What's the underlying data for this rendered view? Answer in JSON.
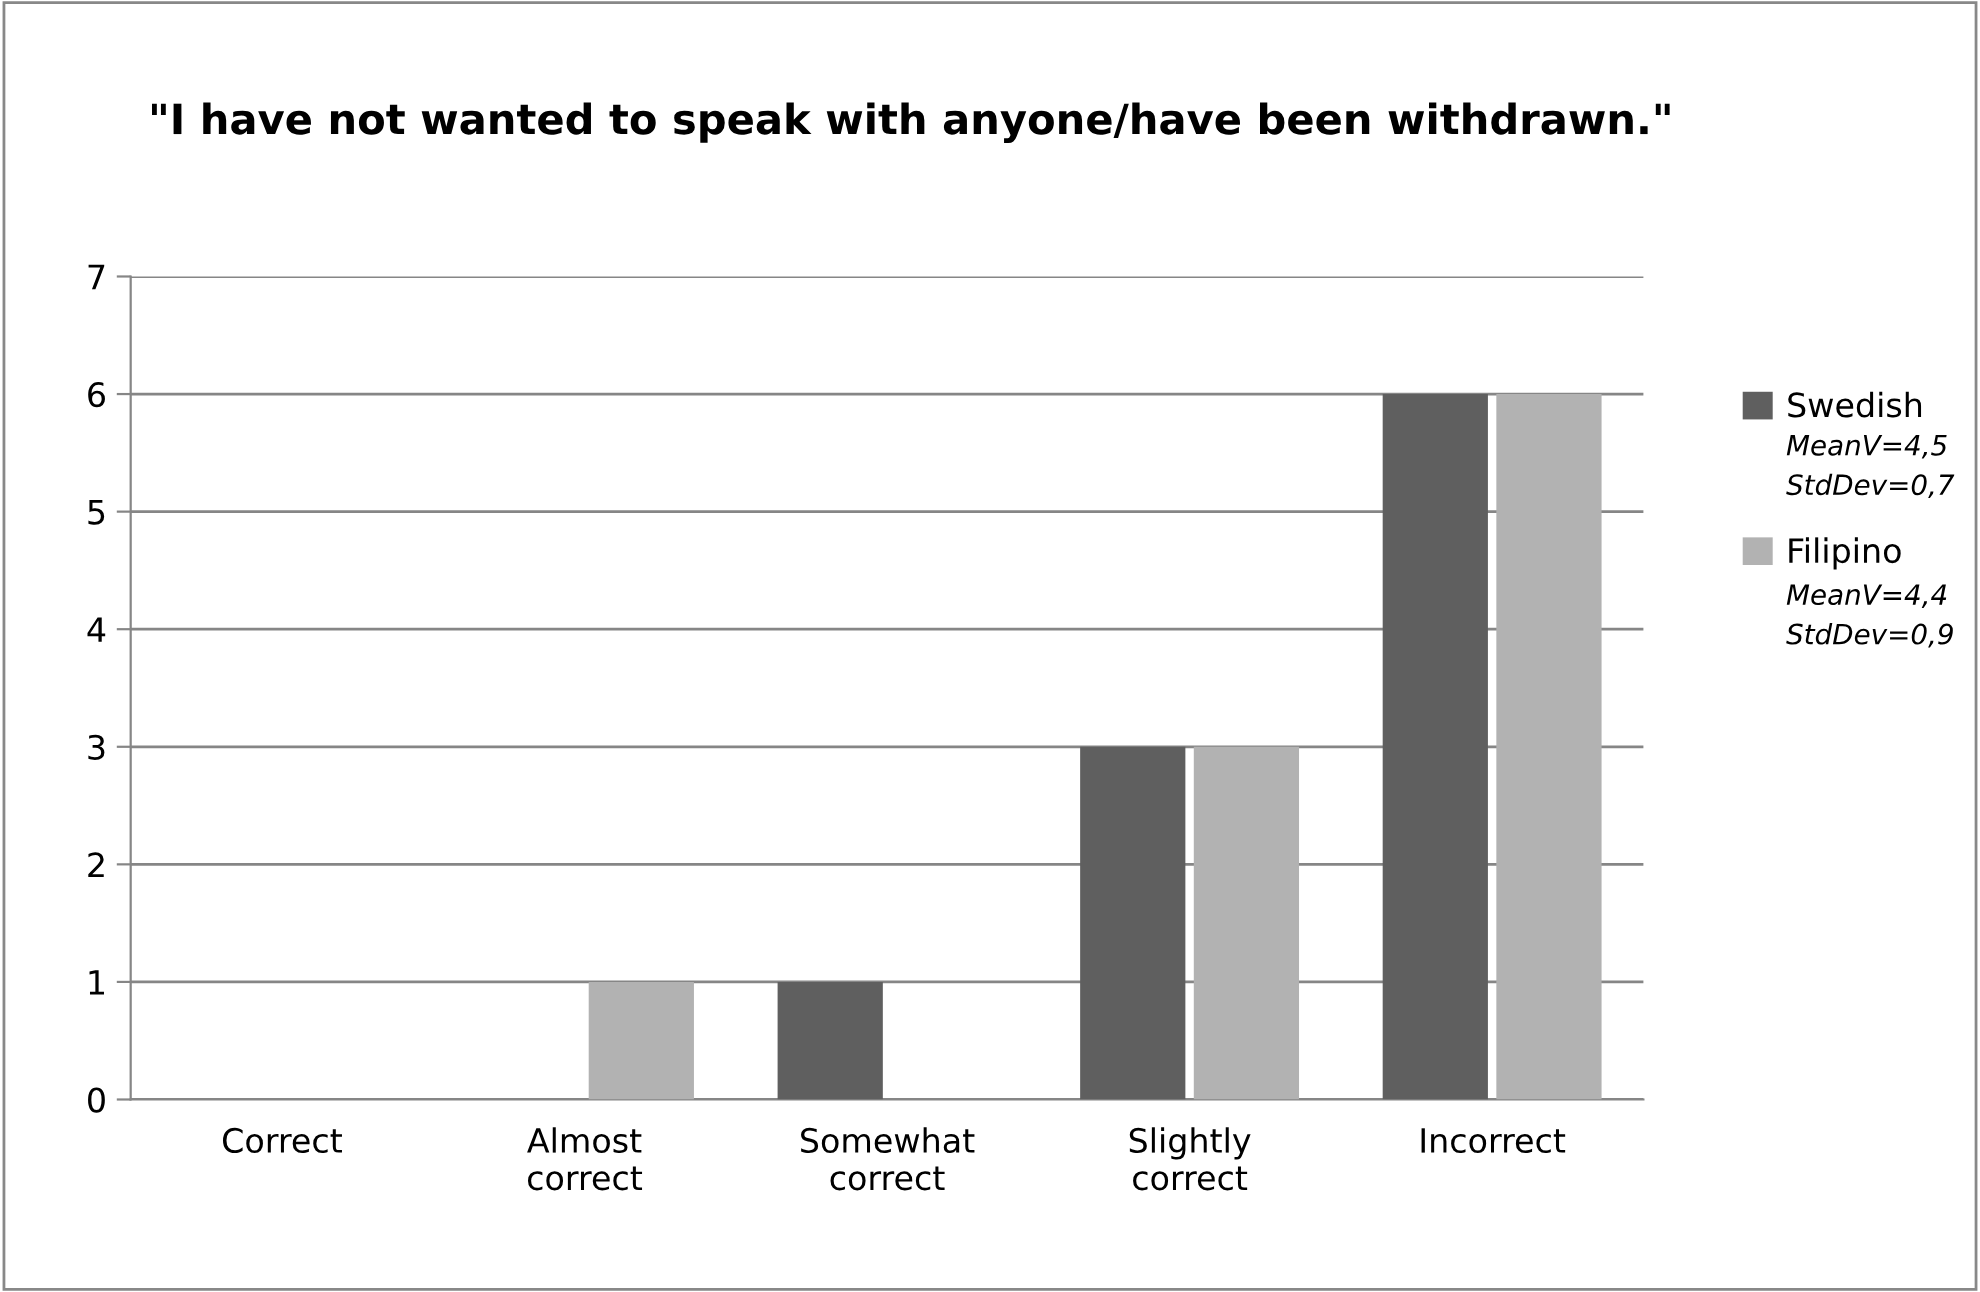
{
  "chart_data": {
    "type": "bar",
    "title": "\"I have not wanted to speak with anyone/have been withdrawn.\"",
    "categories": [
      "Correct",
      "Almost\ncorrect",
      "Somewhat\ncorrect",
      "Slightly\ncorrect",
      "Incorrect"
    ],
    "series": [
      {
        "name": "Swedish",
        "color": "#5f5f5f",
        "values": [
          0,
          0,
          1,
          3,
          6
        ]
      },
      {
        "name": "Filipino",
        "color": "#b2b2b2",
        "values": [
          0,
          1,
          0,
          3,
          6
        ]
      }
    ],
    "annotations": [
      "MeanV=4,5\nStdDev=0,7",
      "MeanV=4,4\nStdDev=0,9"
    ],
    "ylim": [
      0,
      7
    ],
    "yticks": [
      0,
      1,
      2,
      3,
      4,
      5,
      6,
      7
    ],
    "grid": "y",
    "legend": "right"
  }
}
